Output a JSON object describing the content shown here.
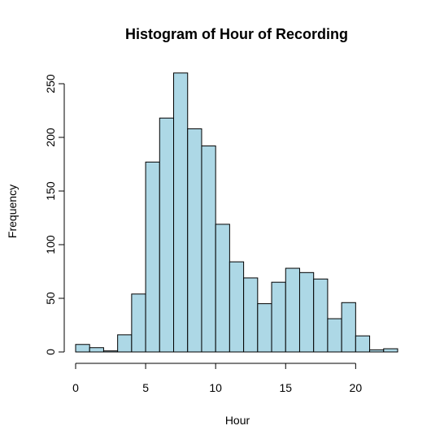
{
  "chart_data": {
    "type": "bar",
    "title": "Histogram of Hour of Recording",
    "xlabel": "Hour",
    "ylabel": "Frequency",
    "bin_edges": [
      0,
      1,
      2,
      3,
      4,
      5,
      6,
      7,
      8,
      9,
      10,
      11,
      12,
      13,
      14,
      15,
      16,
      17,
      18,
      19,
      20,
      21,
      22,
      23
    ],
    "values": [
      7,
      4,
      1,
      16,
      54,
      177,
      218,
      260,
      208,
      192,
      119,
      84,
      69,
      45,
      65,
      78,
      74,
      68,
      31,
      46,
      15,
      2,
      3
    ],
    "xlim": [
      0,
      23
    ],
    "ylim": [
      0,
      250
    ],
    "x_ticks": [
      0,
      5,
      10,
      15,
      20
    ],
    "y_ticks": [
      0,
      50,
      100,
      150,
      200,
      250
    ],
    "grid": false,
    "bar_color": "#add8e6",
    "bar_border_color": "#000000"
  }
}
